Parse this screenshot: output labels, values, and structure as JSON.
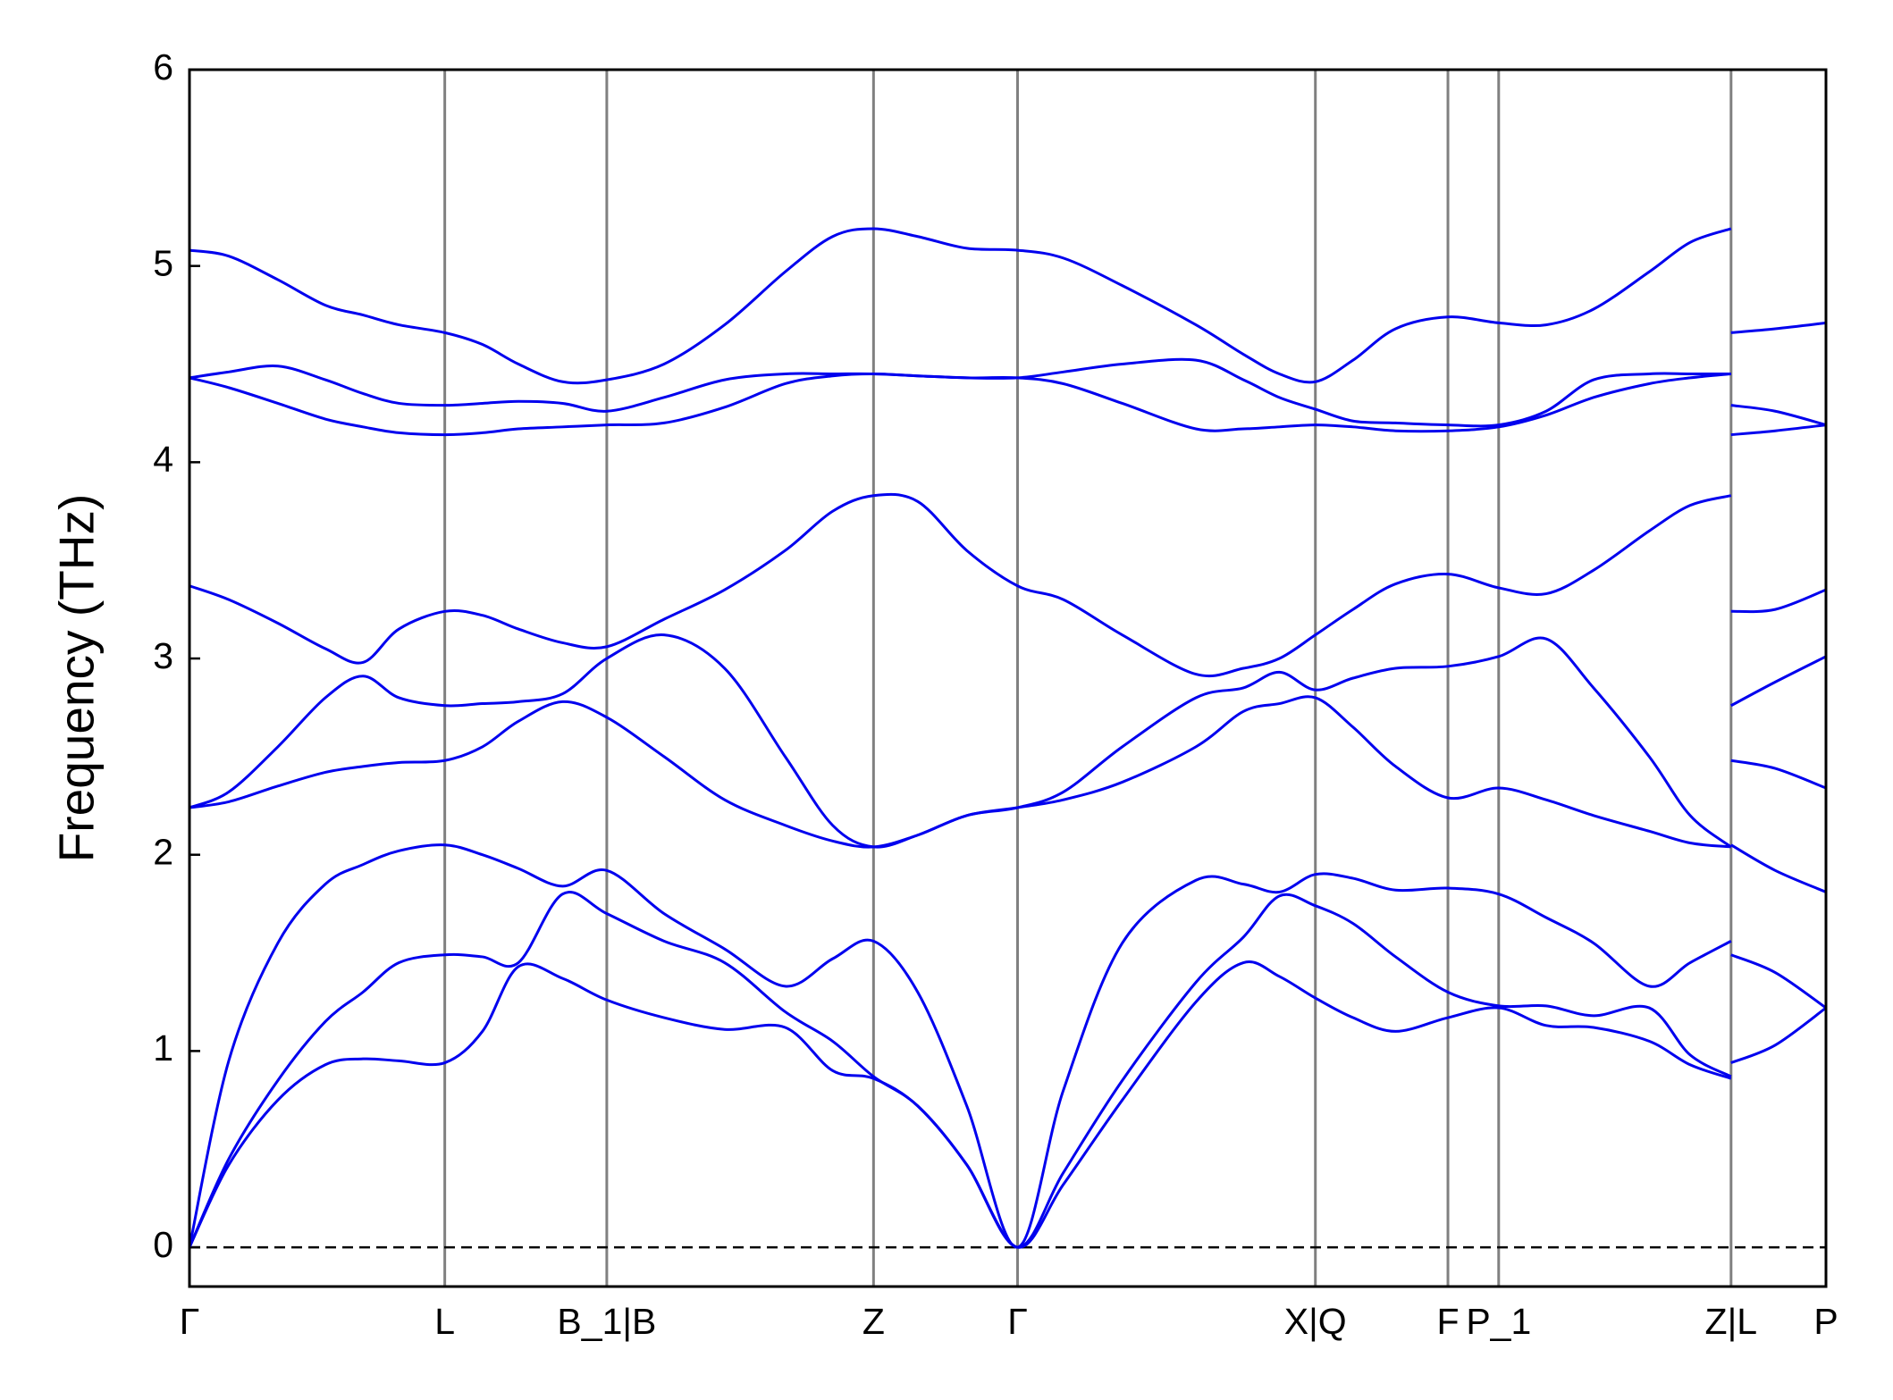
{
  "chart_data": {
    "type": "line",
    "ylabel": "Frequency (THz)",
    "xlim": [
      0,
      1
    ],
    "ylim": [
      -0.2,
      6
    ],
    "yticks": [
      0,
      1,
      2,
      3,
      4,
      5,
      6
    ],
    "xticks": [
      {
        "value": 0,
        "label": "Γ"
      },
      {
        "value": 0.156,
        "label": "L"
      },
      {
        "value": 0.255,
        "label": "B_1|B"
      },
      {
        "value": 0.418,
        "label": "Z"
      },
      {
        "value": 0.506,
        "label": "Γ"
      },
      {
        "value": 0.688,
        "label": "X|Q"
      },
      {
        "value": 0.769,
        "label": "F"
      },
      {
        "value": 0.8,
        "label": "P_1"
      },
      {
        "value": 0.942,
        "label": "Z|L"
      },
      {
        "value": 1,
        "label": "P"
      }
    ],
    "vlines": true,
    "vline_color": "#808080",
    "hline": 0,
    "grid": false,
    "x": [
      0,
      0.024,
      0.054,
      0.083,
      0.106,
      0.128,
      0.156,
      0.179,
      0.201,
      0.228,
      0.255,
      0.29,
      0.327,
      0.364,
      0.393,
      0.418,
      0.445,
      0.475,
      0.506,
      0.534,
      0.57,
      0.615,
      0.644,
      0.666,
      0.688,
      0.711,
      0.737,
      0.769,
      0.8,
      0.829,
      0.858,
      0.892,
      0.917,
      0.942,
      0.942,
      0.942,
      0.969,
      1
    ],
    "series": [
      {
        "color": "#0000ee",
        "values": [
          0,
          0.42,
          0.75,
          0.93,
          0.96,
          0.95,
          0.94,
          1.1,
          1.43,
          1.37,
          1.26,
          1.17,
          1.11,
          1.12,
          0.9,
          0.86,
          0.72,
          0.42,
          0,
          0.32,
          0.75,
          1.25,
          1.45,
          1.38,
          1.27,
          1.17,
          1.1,
          1.17,
          1.22,
          1.13,
          1.12,
          1.05,
          0.93,
          0.86,
          null,
          0.94,
          1.03,
          1.22
        ]
      },
      {
        "color": "#0000ee",
        "values": [
          0,
          0.45,
          0.85,
          1.15,
          1.3,
          1.45,
          1.49,
          1.48,
          1.45,
          1.8,
          1.7,
          1.56,
          1.45,
          1.2,
          1.05,
          0.87,
          0.72,
          0.42,
          0,
          0.38,
          0.85,
          1.35,
          1.58,
          1.79,
          1.74,
          1.65,
          1.48,
          1.3,
          1.23,
          1.23,
          1.18,
          1.22,
          0.98,
          0.87,
          null,
          1.49,
          1.4,
          1.22
        ]
      },
      {
        "color": "#0000ee",
        "values": [
          0,
          0.95,
          1.55,
          1.85,
          1.95,
          2.02,
          2.05,
          2.0,
          1.93,
          1.84,
          1.92,
          1.7,
          1.52,
          1.33,
          1.47,
          1.56,
          1.3,
          0.72,
          0,
          0.8,
          1.55,
          1.87,
          1.85,
          1.81,
          1.9,
          1.88,
          1.82,
          1.83,
          1.8,
          1.68,
          1.55,
          1.33,
          1.45,
          1.56,
          null,
          2.05,
          1.92,
          1.81
        ]
      },
      {
        "color": "#0000ee",
        "values": [
          2.24,
          2.27,
          2.35,
          2.42,
          2.45,
          2.47,
          2.48,
          2.55,
          2.68,
          2.78,
          2.7,
          2.5,
          2.28,
          2.15,
          2.07,
          2.04,
          2.1,
          2.2,
          2.24,
          2.28,
          2.37,
          2.55,
          2.73,
          2.77,
          2.8,
          2.65,
          2.45,
          2.29,
          2.34,
          2.28,
          2.2,
          2.12,
          2.06,
          2.04,
          null,
          2.48,
          2.44,
          2.34
        ]
      },
      {
        "color": "#0000ee",
        "values": [
          2.24,
          2.32,
          2.55,
          2.8,
          2.91,
          2.8,
          2.76,
          2.77,
          2.78,
          2.82,
          3.0,
          3.12,
          2.95,
          2.5,
          2.15,
          2.04,
          2.1,
          2.2,
          2.24,
          2.32,
          2.55,
          2.8,
          2.85,
          2.93,
          2.84,
          2.9,
          2.95,
          2.96,
          3.01,
          3.1,
          2.85,
          2.5,
          2.2,
          2.04,
          null,
          2.76,
          2.88,
          3.01
        ]
      },
      {
        "color": "#0000ee",
        "values": [
          3.37,
          3.3,
          3.18,
          3.05,
          2.98,
          3.15,
          3.24,
          3.22,
          3.15,
          3.08,
          3.06,
          3.2,
          3.35,
          3.55,
          3.75,
          3.83,
          3.8,
          3.55,
          3.37,
          3.3,
          3.12,
          2.92,
          2.95,
          3.0,
          3.12,
          3.25,
          3.38,
          3.43,
          3.36,
          3.33,
          3.45,
          3.65,
          3.78,
          3.83,
          null,
          3.24,
          3.25,
          3.35
        ]
      },
      {
        "color": "#0000ee",
        "values": [
          4.43,
          4.38,
          4.3,
          4.22,
          4.18,
          4.15,
          4.14,
          4.15,
          4.17,
          4.18,
          4.19,
          4.2,
          4.28,
          4.4,
          4.44,
          4.45,
          4.44,
          4.43,
          4.43,
          4.4,
          4.3,
          4.17,
          4.17,
          4.18,
          4.19,
          4.18,
          4.16,
          4.16,
          4.18,
          4.24,
          4.33,
          4.4,
          4.43,
          4.45,
          null,
          4.14,
          4.16,
          4.19
        ]
      },
      {
        "color": "#0000ee",
        "values": [
          4.43,
          4.46,
          4.49,
          4.42,
          4.35,
          4.3,
          4.29,
          4.3,
          4.31,
          4.3,
          4.26,
          4.33,
          4.42,
          4.45,
          4.45,
          4.45,
          4.44,
          4.43,
          4.43,
          4.46,
          4.5,
          4.52,
          4.42,
          4.33,
          4.27,
          4.21,
          4.2,
          4.19,
          4.19,
          4.26,
          4.42,
          4.45,
          4.45,
          4.45,
          null,
          4.29,
          4.26,
          4.19
        ]
      },
      {
        "color": "#0000ee",
        "values": [
          5.08,
          5.05,
          4.93,
          4.8,
          4.75,
          4.7,
          4.66,
          4.6,
          4.5,
          4.41,
          4.42,
          4.5,
          4.7,
          4.97,
          5.15,
          5.19,
          5.15,
          5.09,
          5.08,
          5.04,
          4.9,
          4.7,
          4.55,
          4.45,
          4.41,
          4.52,
          4.68,
          4.74,
          4.71,
          4.7,
          4.78,
          4.97,
          5.12,
          5.19,
          null,
          4.66,
          4.68,
          4.71
        ]
      }
    ]
  }
}
